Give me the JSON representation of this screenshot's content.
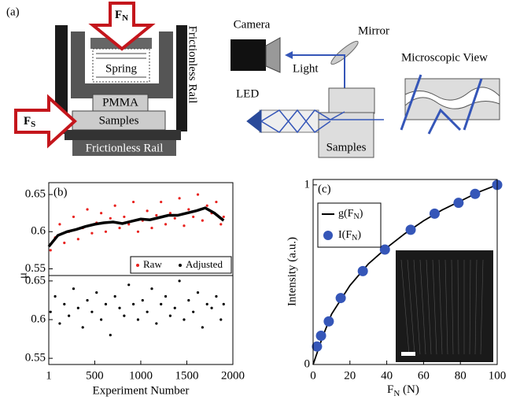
{
  "diagram": {
    "panel_label": "(a)",
    "fn": [
      "F",
      "N"
    ],
    "fs": [
      "F",
      "S"
    ],
    "spring": "Spring",
    "rail_side": "Frictionless Rail",
    "pmma": "PMMA",
    "samples_left": "Samples",
    "rail_bottom": "Frictionless Rail",
    "camera": "Camera",
    "mirror": "Mirror",
    "light": "Light",
    "led": "LED",
    "samples_right": "Samples",
    "micro": "Microscopic View"
  },
  "chart_data": [
    {
      "type": "scatter",
      "panel_label": "(b)",
      "y_label": "μ",
      "xlim": [
        1,
        2000
      ],
      "ylim": [
        0.541,
        0.666
      ],
      "yticks": [
        0.55,
        0.6,
        0.65
      ],
      "series": [
        {
          "name": "Raw",
          "style": "markers",
          "color": "#e8211d",
          "x": [
            20,
            70,
            120,
            170,
            220,
            270,
            320,
            370,
            420,
            470,
            520,
            570,
            620,
            670,
            720,
            770,
            820,
            870,
            920,
            970,
            1020,
            1070,
            1120,
            1170,
            1220,
            1270,
            1320,
            1370,
            1420,
            1470,
            1520,
            1570,
            1620,
            1670,
            1720,
            1770,
            1820,
            1870,
            1900
          ],
          "values": [
            0.575,
            0.592,
            0.61,
            0.585,
            0.6,
            0.62,
            0.59,
            0.605,
            0.63,
            0.598,
            0.612,
            0.625,
            0.6,
            0.618,
            0.635,
            0.605,
            0.62,
            0.61,
            0.64,
            0.6,
            0.615,
            0.628,
            0.605,
            0.622,
            0.64,
            0.61,
            0.625,
            0.618,
            0.645,
            0.608,
            0.63,
            0.62,
            0.65,
            0.615,
            0.635,
            0.625,
            0.64,
            0.61,
            0.62
          ]
        },
        {
          "style": "line",
          "color": "#000000",
          "x": [
            1,
            100,
            200,
            300,
            400,
            500,
            600,
            700,
            800,
            900,
            1000,
            1100,
            1200,
            1300,
            1400,
            1500,
            1600,
            1700,
            1800,
            1900
          ],
          "values": [
            0.58,
            0.595,
            0.6,
            0.603,
            0.607,
            0.61,
            0.612,
            0.613,
            0.611,
            0.614,
            0.617,
            0.616,
            0.619,
            0.622,
            0.622,
            0.625,
            0.628,
            0.632,
            0.625,
            0.615
          ]
        }
      ]
    },
    {
      "type": "scatter",
      "x_label": "Experiment Number",
      "xlim": [
        1,
        2000
      ],
      "xticks": [
        1,
        500,
        1000,
        1500,
        2000
      ],
      "ylim": [
        0.542,
        0.657
      ],
      "yticks": [
        0.55,
        0.6,
        0.65
      ],
      "series": [
        {
          "name": "Adjusted",
          "style": "markers",
          "color": "#000000",
          "x": [
            20,
            70,
            120,
            170,
            220,
            270,
            320,
            370,
            420,
            470,
            520,
            570,
            620,
            670,
            720,
            770,
            820,
            870,
            920,
            970,
            1020,
            1070,
            1120,
            1170,
            1220,
            1270,
            1320,
            1370,
            1420,
            1470,
            1520,
            1570,
            1620,
            1670,
            1720,
            1770,
            1820,
            1870,
            1900
          ],
          "values": [
            0.61,
            0.63,
            0.595,
            0.62,
            0.605,
            0.64,
            0.615,
            0.59,
            0.625,
            0.61,
            0.635,
            0.6,
            0.62,
            0.58,
            0.63,
            0.615,
            0.605,
            0.645,
            0.62,
            0.6,
            0.625,
            0.61,
            0.64,
            0.595,
            0.62,
            0.63,
            0.605,
            0.615,
            0.65,
            0.6,
            0.625,
            0.61,
            0.635,
            0.59,
            0.62,
            0.615,
            0.63,
            0.6,
            0.62
          ]
        }
      ]
    },
    {
      "type": "line",
      "panel_label": "(c)",
      "y_label": "Intensity (a.u.)",
      "x_label": [
        "F",
        "N",
        " (N)"
      ],
      "xlim": [
        0,
        100
      ],
      "xticks": [
        0,
        20,
        40,
        60,
        80,
        100
      ],
      "ylim": [
        0,
        1.03
      ],
      "yticks": [
        0,
        1
      ],
      "series": [
        {
          "name": [
            "g(F",
            "N",
            ")"
          ],
          "style": "line",
          "color": "#000000",
          "x": [
            0,
            5,
            10,
            20,
            30,
            40,
            50,
            60,
            70,
            80,
            90,
            100
          ],
          "values": [
            0,
            0.15,
            0.28,
            0.44,
            0.56,
            0.65,
            0.73,
            0.8,
            0.86,
            0.91,
            0.96,
            1.0
          ]
        },
        {
          "name": [
            "I(F",
            "N",
            ")"
          ],
          "style": "markers",
          "color": "#3556b8",
          "x": [
            2.1,
            4.3,
            8.5,
            15,
            27,
            39,
            53,
            66,
            79,
            88,
            100
          ],
          "values": [
            0.1,
            0.16,
            0.24,
            0.37,
            0.52,
            0.64,
            0.75,
            0.84,
            0.9,
            0.95,
            1.0
          ]
        }
      ]
    }
  ]
}
